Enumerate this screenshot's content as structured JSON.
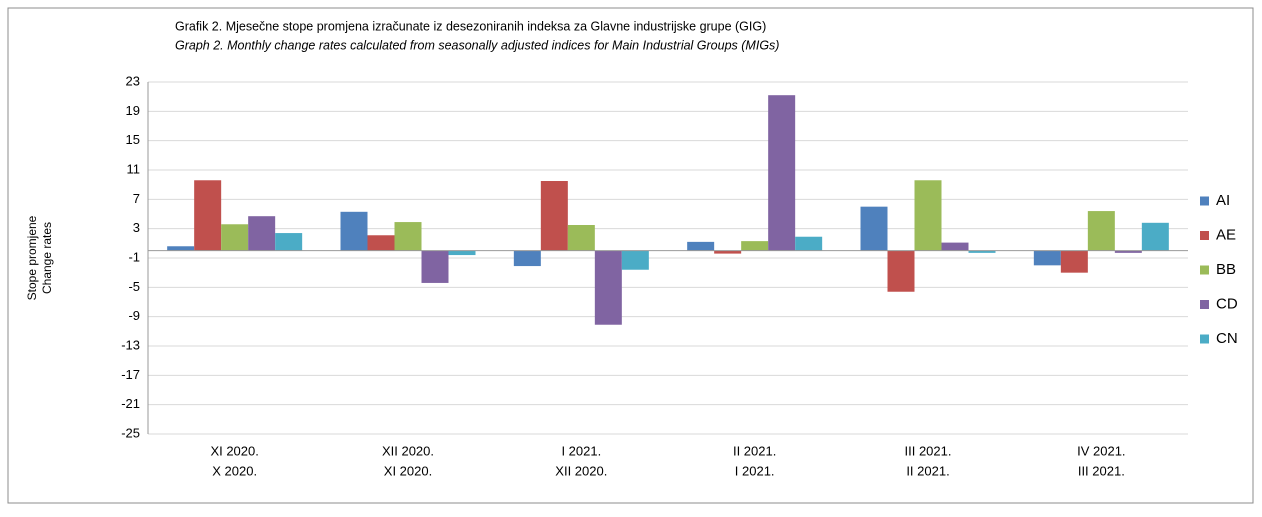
{
  "chart_data": {
    "type": "bar",
    "title": "Grafik 2. Mjesečne stope promjena izračunate iz desezoniranih indeksa za Glavne industrijske grupe (GIG)",
    "subtitle": "Graph 2. Monthly change rates calculated from seasonally adjusted indices for Main Industrial Groups (MIGs)",
    "y_label": [
      "Stope promjene",
      "Change rates"
    ],
    "categories": [
      [
        "XI 2020.",
        "X 2020."
      ],
      [
        "XII 2020.",
        "XI 2020."
      ],
      [
        "I 2021.",
        "XII 2020."
      ],
      [
        "II 2021.",
        "I 2021."
      ],
      [
        "III 2021.",
        "II 2021."
      ],
      [
        "IV 2021.",
        "III 2021."
      ]
    ],
    "series": [
      {
        "name": "AI",
        "color": "#4f81bd",
        "values": [
          0.6,
          5.3,
          -2.1,
          1.2,
          6.0,
          -2.0
        ]
      },
      {
        "name": "AE",
        "color": "#c0504d",
        "values": [
          9.6,
          2.1,
          9.5,
          -0.4,
          -5.6,
          -3.0
        ]
      },
      {
        "name": "BB",
        "color": "#9bbb59",
        "values": [
          3.6,
          3.9,
          3.5,
          1.3,
          9.6,
          5.4
        ]
      },
      {
        "name": "CD",
        "color": "#8064a2",
        "values": [
          4.7,
          -4.4,
          -10.1,
          21.2,
          1.1,
          -0.3
        ]
      },
      {
        "name": "CN",
        "color": "#4bacc6",
        "values": [
          2.4,
          -0.6,
          -2.6,
          1.9,
          -0.3,
          3.8
        ]
      }
    ],
    "ylim": [
      -25,
      23
    ],
    "yticks": [
      23,
      19,
      15,
      11,
      7,
      3,
      -1,
      -5,
      -9,
      -13,
      -17,
      -21,
      -25
    ],
    "grid": true,
    "legend": "right"
  }
}
